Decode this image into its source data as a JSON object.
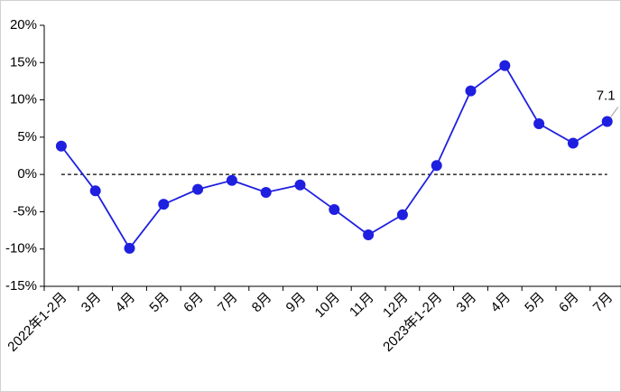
{
  "chart_data": {
    "type": "line",
    "categories": [
      "2022年1-2月",
      "3月",
      "4月",
      "5月",
      "6月",
      "7月",
      "8月",
      "9月",
      "10月",
      "11月",
      "12月",
      "2023年1-2月",
      "3月",
      "4月",
      "5月",
      "6月",
      "7月"
    ],
    "series": [
      {
        "color": "#1f1fe0",
        "values": [
          3.8,
          -2.2,
          -9.9,
          -4.0,
          -2.0,
          -0.8,
          -2.4,
          -1.4,
          -4.7,
          -8.1,
          -5.4,
          1.2,
          11.2,
          14.6,
          6.8,
          4.2,
          7.1
        ],
        "value_labels": [
          null,
          null,
          null,
          null,
          null,
          null,
          null,
          null,
          null,
          null,
          null,
          null,
          null,
          null,
          null,
          null,
          "7.1"
        ]
      }
    ],
    "ylim": [
      -15,
      20
    ],
    "yticks": [
      {
        "value": -15,
        "label": "-15%"
      },
      {
        "value": -10,
        "label": "-10%"
      },
      {
        "value": -5,
        "label": "-5%"
      },
      {
        "value": 0,
        "label": "0%"
      },
      {
        "value": 5,
        "label": "5%"
      },
      {
        "value": 10,
        "label": "10%"
      },
      {
        "value": 15,
        "label": "15%"
      },
      {
        "value": 20,
        "label": "20%"
      }
    ],
    "zero_line": true
  }
}
